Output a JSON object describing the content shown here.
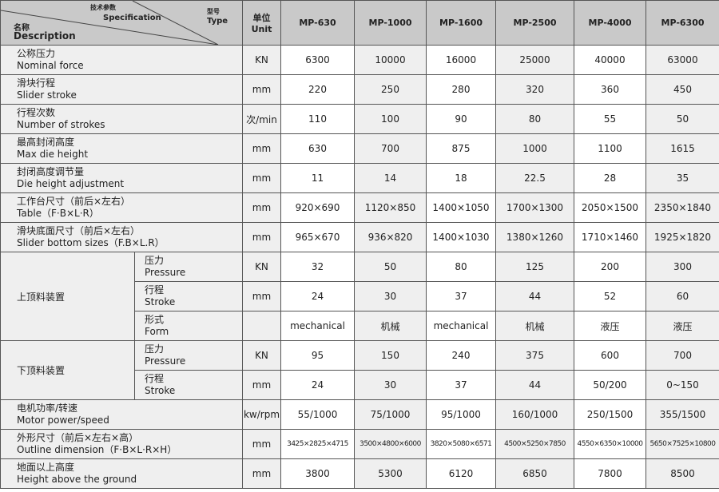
{
  "header": {
    "spec_cn": "技术参数",
    "spec_en": "Specification",
    "type_cn": "型号",
    "type_en": "Type",
    "desc_cn": "名称",
    "desc_en": "Description",
    "unit_cn": "单位",
    "unit_en": "Unit",
    "models": [
      "MP-630",
      "MP-1000",
      "MP-1600",
      "MP-2500",
      "MP-4000",
      "MP-6300"
    ]
  },
  "rows": [
    {
      "cn": "公称压力",
      "en": "Nominal force",
      "unit": "KN",
      "values": [
        "6300",
        "10000",
        "16000",
        "25000",
        "40000",
        "63000"
      ]
    },
    {
      "cn": "滑块行程",
      "en": "Slider stroke",
      "unit": "mm",
      "values": [
        "220",
        "250",
        "280",
        "320",
        "360",
        "450"
      ]
    },
    {
      "cn": "行程次数",
      "en": "Number of strokes",
      "unit": "次/min",
      "values": [
        "110",
        "100",
        "90",
        "80",
        "55",
        "50"
      ]
    },
    {
      "cn": "最高封闭高度",
      "en": "Max die height",
      "unit": "mm",
      "values": [
        "630",
        "700",
        "875",
        "1000",
        "1100",
        "1615"
      ]
    },
    {
      "cn": "封闭高度调节量",
      "en": "Die height adjustment",
      "unit": "mm",
      "values": [
        "11",
        "14",
        "18",
        "22.5",
        "28",
        "35"
      ]
    },
    {
      "cn": "工作台尺寸（前后×左右）",
      "en": "Table（F·B×L·R）",
      "unit": "mm",
      "values": [
        "920×690",
        "1120×850",
        "1400×1050",
        "1700×1300",
        "2050×1500",
        "2350×1840"
      ]
    },
    {
      "cn": "滑块底面尺寸（前后×左右）",
      "en": "Slider bottom sizes（F.B×L.R）",
      "unit": "mm",
      "values": [
        "965×670",
        "936×820",
        "1400×1030",
        "1380×1260",
        "1710×1460",
        "1925×1820"
      ]
    },
    {
      "group": "上顶料装置",
      "cn": "压力",
      "en": "Pressure",
      "unit": "KN",
      "values": [
        "32",
        "50",
        "80",
        "125",
        "200",
        "300"
      ]
    },
    {
      "group": "上顶料装置",
      "cn": "行程",
      "en": "Stroke",
      "unit": "mm",
      "values": [
        "24",
        "30",
        "37",
        "44",
        "52",
        "60"
      ]
    },
    {
      "group": "上顶料装置",
      "cn": "形式",
      "en": "Form",
      "unit": "",
      "values": [
        "mechanical",
        "机械",
        "mechanical",
        "机械",
        "液压",
        "液压"
      ]
    },
    {
      "group": "下顶料装置",
      "cn": "压力",
      "en": "Pressure",
      "unit": "KN",
      "values": [
        "95",
        "150",
        "240",
        "375",
        "600",
        "700"
      ]
    },
    {
      "group": "下顶料装置",
      "cn": "行程",
      "en": "Stroke",
      "unit": "mm",
      "values": [
        "24",
        "30",
        "37",
        "44",
        "50/200",
        "0~150"
      ]
    },
    {
      "cn": "电机功率/转速",
      "en": "Motor power/speed",
      "unit": "kw/rpm",
      "values": [
        "55/1000",
        "75/1000",
        "95/1000",
        "160/1000",
        "250/1500",
        "355/1500"
      ]
    },
    {
      "cn": "外形尺寸（前后×左右×高）",
      "en": "Outline dimension（F·B×L·R×H）",
      "unit": "mm",
      "small": true,
      "values": [
        "3425×2825×4715",
        "3500×4800×6000",
        "3820×5080×6571",
        "4500×5250×7850",
        "4550×6350×10000",
        "5650×7525×10800"
      ]
    },
    {
      "cn": "地面以上高度",
      "en": "Height above the ground",
      "unit": "mm",
      "values": [
        "3800",
        "5300",
        "6120",
        "6850",
        "7800",
        "8500"
      ]
    }
  ]
}
